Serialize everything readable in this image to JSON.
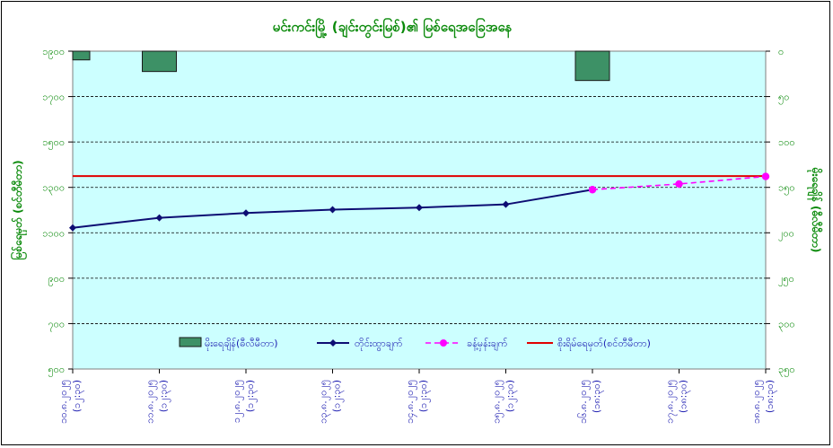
{
  "chart_data": {
    "type": "bar+line",
    "title": "မင်းကင်းမြို့ (ချင်းတွင်းမြစ်)၏ မြစ်ရေအခြေအနေ",
    "ylabel_left": "မြစ်ရေမှတ် (စင်တီမီတာ)",
    "ylabel_right": "မိုးရေချိန် (ဓီလီမီတာ)",
    "categories": [
      [
        "၁၀.၈.၂၀၂၅",
        "(၁၂:၃၀)"
      ],
      [
        "၁၁.၈.၂၀၂၅",
        "(၁၂:၃၀)"
      ],
      [
        "၁၂.၈.၂၀၂၅",
        "(၁၂:၃၀)"
      ],
      [
        "၁၃.၈.၂၀၂၅",
        "(၁၂:၃၀)"
      ],
      [
        "၁၄.၈.၂၀၂၅",
        "(၁၂:၃၀)"
      ],
      [
        "၁၅.၈.၂၀၂၅",
        "(၁၂:၃၀)"
      ],
      [
        "၁၆.၈.၂၀၂၅",
        "(၁၈:၃၀)"
      ],
      [
        "၁၇.၈.၂၀၂၅",
        "(၁၈:၃၀)"
      ],
      [
        "၁၈.၈.၂၀၂၅",
        "(၁၈:၃၀)"
      ]
    ],
    "left_axis": {
      "min": 500,
      "max": 1900,
      "ticks": [
        "၅၀၀",
        "၇၀၀",
        "၉၀၀",
        "၁၁၀၀",
        "၁၃၀၀",
        "၁၅၀၀",
        "၁၇၀၀",
        "၁၉၀၀"
      ]
    },
    "right_axis": {
      "min": 0,
      "max": 350,
      "inverted": true,
      "ticks": [
        "၀",
        "၅၀",
        "၁၀၀",
        "၁၅၀",
        "၂၀၀",
        "၂၅၀",
        "၃၀၀",
        "၃၅၀"
      ]
    },
    "series": [
      {
        "name": "မိုးရေချိန်(ဓီလီမီတာ)",
        "kind": "bar",
        "axis": "right",
        "color": "#3d9166",
        "values": [
          9.6,
          22.4,
          0,
          0,
          0,
          0,
          32.3,
          0,
          0
        ]
      },
      {
        "name": "တိုင်းထွာချက်",
        "kind": "line",
        "axis": "left",
        "color": "#0d0d73",
        "values": [
          1122,
          1166,
          1187,
          1202,
          1211,
          1225,
          null,
          null,
          null
        ]
      },
      {
        "name": "ခန့်မှန်းချက်",
        "kind": "line-dashed",
        "axis": "left",
        "color": "#ff00ff",
        "values": [
          null,
          null,
          null,
          null,
          null,
          null,
          1290,
          1315,
          1348
        ]
      },
      {
        "name": "စိုးရိမ်ရေမှတ်(စင်တီမီတာ)",
        "kind": "hline",
        "axis": "left",
        "color": "#e00000",
        "value": 1350
      }
    ],
    "connector": {
      "from_index": 5,
      "to_index": 6,
      "from": 1225,
      "to": 1290,
      "color": "#0d0d73"
    },
    "plot_background": "#ccffff",
    "grid": true,
    "legend_position": "bottom-inside"
  }
}
